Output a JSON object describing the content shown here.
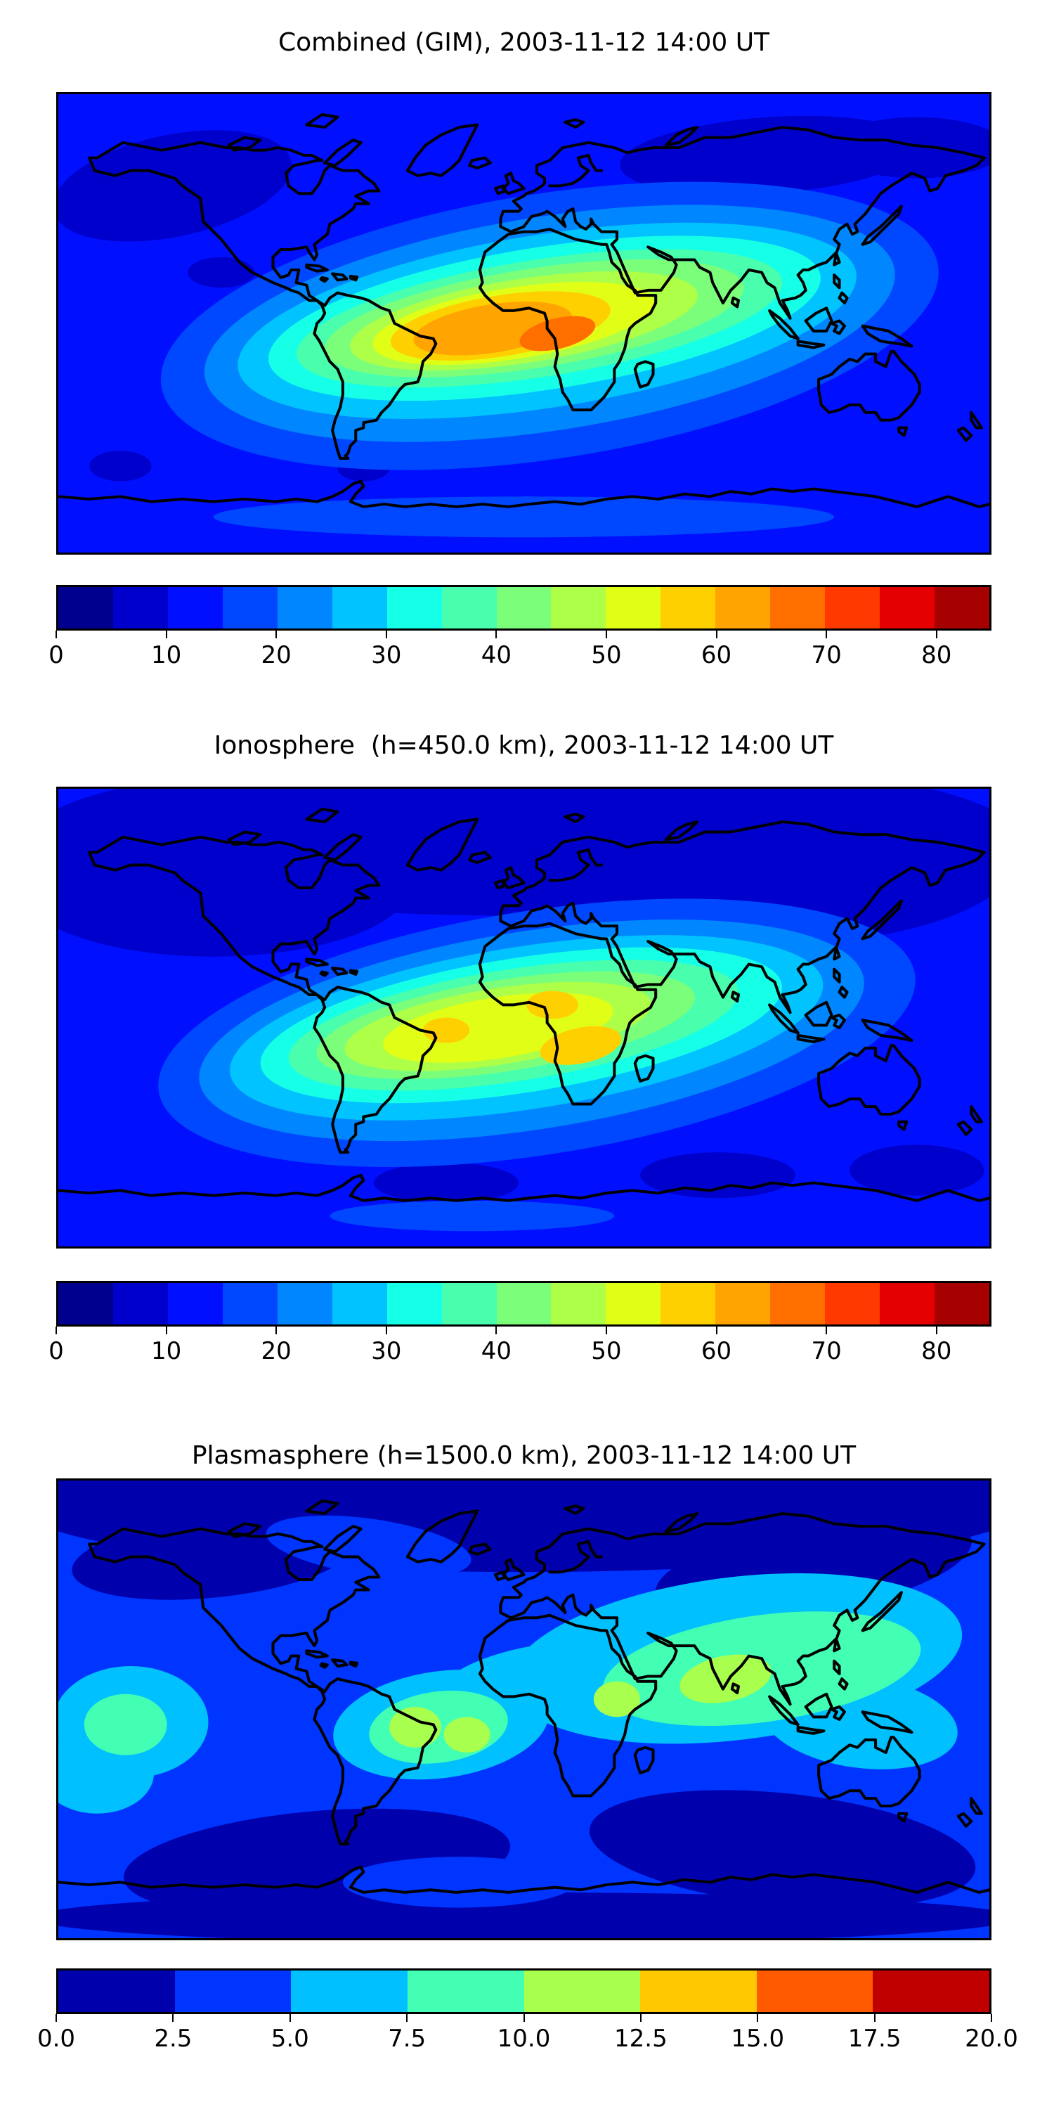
{
  "panels": [
    {
      "title": "Combined (GIM), 2003-11-12 14:00 UT",
      "colorbar": {
        "orientation": "horizontal",
        "scale_max": 85,
        "tick_values": [
          0,
          10,
          20,
          30,
          40,
          50,
          60,
          70,
          80
        ],
        "tick_labels": [
          "0",
          "10",
          "20",
          "30",
          "40",
          "50",
          "60",
          "70",
          "80"
        ],
        "colors": [
          "#00008f",
          "#0000cd",
          "#0010ff",
          "#0048ff",
          "#0087ff",
          "#00c3ff",
          "#16ffe7",
          "#49ffad",
          "#7bff7b",
          "#aeff48",
          "#e1ff16",
          "#ffd000",
          "#ffa400",
          "#ff6f00",
          "#ff3900",
          "#e40000",
          "#a60000"
        ]
      },
      "map": {
        "base_index": 2,
        "blobs": [
          [
            1,
            275,
            24,
            58,
            15,
            -4
          ],
          [
            1,
            332,
            21,
            34,
            12,
            0
          ],
          [
            1,
            44,
            36,
            47,
            20,
            -12
          ],
          [
            1,
            63,
            70,
            13,
            6,
            0
          ],
          [
            1,
            24,
            146,
            12,
            6,
            0
          ],
          [
            1,
            118,
            147,
            10,
            5,
            0
          ],
          [
            3,
            180,
            166,
            120,
            8,
            0
          ],
          [
            3,
            190,
            91,
            152,
            52,
            -9
          ],
          [
            4,
            190,
            90,
            135,
            42,
            -9
          ],
          [
            5,
            189,
            89,
            121,
            34,
            -9
          ],
          [
            6,
            188,
            88,
            108,
            28,
            -9
          ],
          [
            7,
            186,
            88,
            95,
            23,
            -9
          ],
          [
            8,
            184,
            88,
            82,
            19.5,
            -9
          ],
          [
            9,
            180,
            89,
            68,
            16.5,
            -9
          ],
          [
            10,
            176,
            90,
            55,
            14,
            -9
          ],
          [
            11,
            171,
            91,
            43,
            12,
            -9
          ],
          [
            12,
            168,
            92,
            31,
            9.5,
            -9
          ],
          [
            13,
            193,
            94,
            15,
            6,
            -14
          ]
        ]
      }
    },
    {
      "title": "Ionosphere  (h=450.0 km), 2003-11-12 14:00 UT",
      "colorbar": {
        "orientation": "horizontal",
        "scale_max": 85,
        "tick_values": [
          0,
          10,
          20,
          30,
          40,
          50,
          60,
          70,
          80
        ],
        "tick_labels": [
          "0",
          "10",
          "20",
          "30",
          "40",
          "50",
          "60",
          "70",
          "80"
        ],
        "colors": [
          "#00008f",
          "#0000cd",
          "#0010ff",
          "#0048ff",
          "#0087ff",
          "#00c3ff",
          "#16ffe7",
          "#49ffad",
          "#7bff7b",
          "#aeff48",
          "#e1ff16",
          "#ffd000",
          "#ffa400",
          "#ff6f00",
          "#ff3900",
          "#e40000",
          "#a60000"
        ]
      },
      "map": {
        "base_index": 2,
        "blobs": [
          [
            1,
            180,
            18,
            190,
            32,
            0
          ],
          [
            1,
            60,
            38,
            76,
            28,
            0
          ],
          [
            1,
            300,
            36,
            70,
            24,
            -6
          ],
          [
            1,
            150,
            155,
            28,
            8,
            0
          ],
          [
            1,
            255,
            152,
            30,
            9,
            0
          ],
          [
            1,
            332,
            150,
            26,
            10,
            0
          ],
          [
            3,
            160,
            168,
            55,
            6,
            0
          ],
          [
            3,
            185,
            96,
            148,
            48,
            -9
          ],
          [
            4,
            183,
            95,
            130,
            39,
            -9
          ],
          [
            5,
            181,
            94,
            116,
            32,
            -9
          ],
          [
            6,
            179,
            93,
            102,
            26.5,
            -9
          ],
          [
            7,
            176,
            93,
            88,
            22,
            -9
          ],
          [
            8,
            173,
            93,
            74,
            18,
            -9
          ],
          [
            9,
            170,
            93.5,
            60,
            15,
            -9
          ],
          [
            10,
            170,
            94,
            45,
            12,
            -9
          ],
          [
            11,
            150,
            95,
            9,
            5,
            0
          ],
          [
            11,
            191,
            85,
            10,
            5.5,
            0
          ],
          [
            11,
            202,
            101,
            16,
            7,
            -12
          ]
        ]
      }
    },
    {
      "title": "Plasmasphere (h=1500.0 km), 2003-11-12 14:00 UT",
      "colorbar": {
        "orientation": "horizontal",
        "scale_max": 20,
        "tick_values": [
          0,
          2.5,
          5,
          7.5,
          10,
          12.5,
          15,
          17.5,
          20
        ],
        "tick_labels": [
          "0.0",
          "2.5",
          "5.0",
          "7.5",
          "10.0",
          "12.5",
          "15.0",
          "17.5",
          "20.0"
        ],
        "colors": [
          "#0000ad",
          "#0035ff",
          "#00c0ff",
          "#42ffb4",
          "#a8ff4e",
          "#ffc800",
          "#ff5a00",
          "#c00000"
        ]
      },
      "map": {
        "base_index": 1,
        "blobs": [
          [
            0,
            180,
            10,
            195,
            26,
            0
          ],
          [
            0,
            60,
            30,
            55,
            16,
            -6
          ],
          [
            0,
            292,
            34,
            62,
            18,
            -10
          ],
          [
            0,
            100,
            150,
            75,
            20,
            -5
          ],
          [
            0,
            280,
            145,
            75,
            22,
            6
          ],
          [
            0,
            180,
            172,
            190,
            10,
            0
          ],
          [
            1,
            120,
            26,
            40,
            11,
            8
          ],
          [
            1,
            155,
            158,
            45,
            10,
            0
          ],
          [
            2,
            15,
            115,
            22,
            16,
            0
          ],
          [
            2,
            262,
            70,
            88,
            32,
            -7
          ],
          [
            2,
            310,
            95,
            38,
            18,
            8
          ],
          [
            2,
            28,
            95,
            30,
            22,
            0
          ],
          [
            2,
            148,
            96,
            42,
            21,
            -8
          ],
          [
            2,
            185,
            80,
            40,
            15,
            -10
          ],
          [
            3,
            272,
            74,
            62,
            21,
            -8
          ],
          [
            3,
            26,
            96,
            16,
            12,
            0
          ],
          [
            3,
            147,
            97,
            27,
            14,
            -8
          ],
          [
            4,
            258,
            78,
            18,
            9,
            -12
          ],
          [
            4,
            216,
            86,
            9,
            7,
            0
          ],
          [
            4,
            138,
            97,
            10,
            8,
            0
          ],
          [
            4,
            158,
            100,
            9,
            7,
            0
          ]
        ]
      }
    }
  ],
  "chart_data": [
    {
      "type": "heatmap",
      "subtype": "filled-contour-world-map",
      "title": "Combined (GIM), 2003-11-12 14:00 UT",
      "projection": "equirectangular",
      "lon_range": [
        -180,
        180
      ],
      "lat_range": [
        -90,
        90
      ],
      "colormap": "jet (discrete)",
      "contour_levels": [
        0,
        5,
        10,
        15,
        20,
        25,
        30,
        35,
        40,
        45,
        50,
        55,
        60,
        65,
        70,
        75,
        80,
        85
      ],
      "colorbar_ticks": [
        0,
        10,
        20,
        30,
        40,
        50,
        60,
        70,
        80
      ],
      "value_range_shown": [
        0,
        85
      ],
      "grid": false,
      "legend_position": "horizontal colorbar below map",
      "overlay": "black coastlines",
      "approx_max": {
        "value_band": [
          65,
          70
        ],
        "lon_est": 15,
        "lat_est": -5,
        "region": "central Africa / Gulf of Guinea"
      },
      "pattern_notes": "Elongated daytime enhancement band from eastern South America across the Atlantic and Africa toward India/SE Asia; darkest (0-10) areas over Siberia, NW North America and high southern latitudes."
    },
    {
      "type": "heatmap",
      "subtype": "filled-contour-world-map",
      "title": "Ionosphere  (h=450.0 km), 2003-11-12 14:00 UT",
      "projection": "equirectangular",
      "lon_range": [
        -180,
        180
      ],
      "lat_range": [
        -90,
        90
      ],
      "colormap": "jet (discrete)",
      "contour_levels": [
        0,
        5,
        10,
        15,
        20,
        25,
        30,
        35,
        40,
        45,
        50,
        55,
        60,
        65,
        70,
        75,
        80,
        85
      ],
      "colorbar_ticks": [
        0,
        10,
        20,
        30,
        40,
        50,
        60,
        70,
        80
      ],
      "value_range_shown": [
        0,
        85
      ],
      "grid": false,
      "legend_position": "horizontal colorbar below map",
      "overlay": "black coastlines",
      "approx_max": {
        "value_band": [
          50,
          55
        ],
        "lon_est": 15,
        "lat_est": -8,
        "region": "equatorial Africa and tropical Atlantic (yellow cores near Nigeria, Angola/Zambia and mid-Atlantic)"
      },
      "pattern_notes": "Similar band to combined map but weaker (peak 50-55); most of the northern hemisphere above ~45N in the 5-10 band."
    },
    {
      "type": "heatmap",
      "subtype": "filled-contour-world-map",
      "title": "Plasmasphere (h=1500.0 km), 2003-11-12 14:00 UT",
      "projection": "equirectangular",
      "lon_range": [
        -180,
        180
      ],
      "lat_range": [
        -90,
        90
      ],
      "colormap": "jet (discrete)",
      "contour_levels": [
        0,
        2.5,
        5,
        7.5,
        10,
        12.5,
        15,
        17.5,
        20
      ],
      "colorbar_ticks": [
        0,
        2.5,
        5,
        7.5,
        10,
        12.5,
        15,
        17.5,
        20
      ],
      "value_range_shown": [
        0,
        20
      ],
      "grid": false,
      "legend_position": "horizontal colorbar below map",
      "overlay": "black coastlines",
      "approx_max": {
        "value_band": [
          10,
          12.5
        ],
        "lon_est": 78,
        "lat_est": 12,
        "region": "green-yellow cores over southern India/SE Asia, east Africa, NE Brazil/Atlantic and central Pacific"
      },
      "pattern_notes": "Broad cyan/aqua band (5-10) from the Atlantic across Africa, Asia and the western Pacific; dark 0-2.5 bands at high northern and southern latitudes."
    }
  ]
}
